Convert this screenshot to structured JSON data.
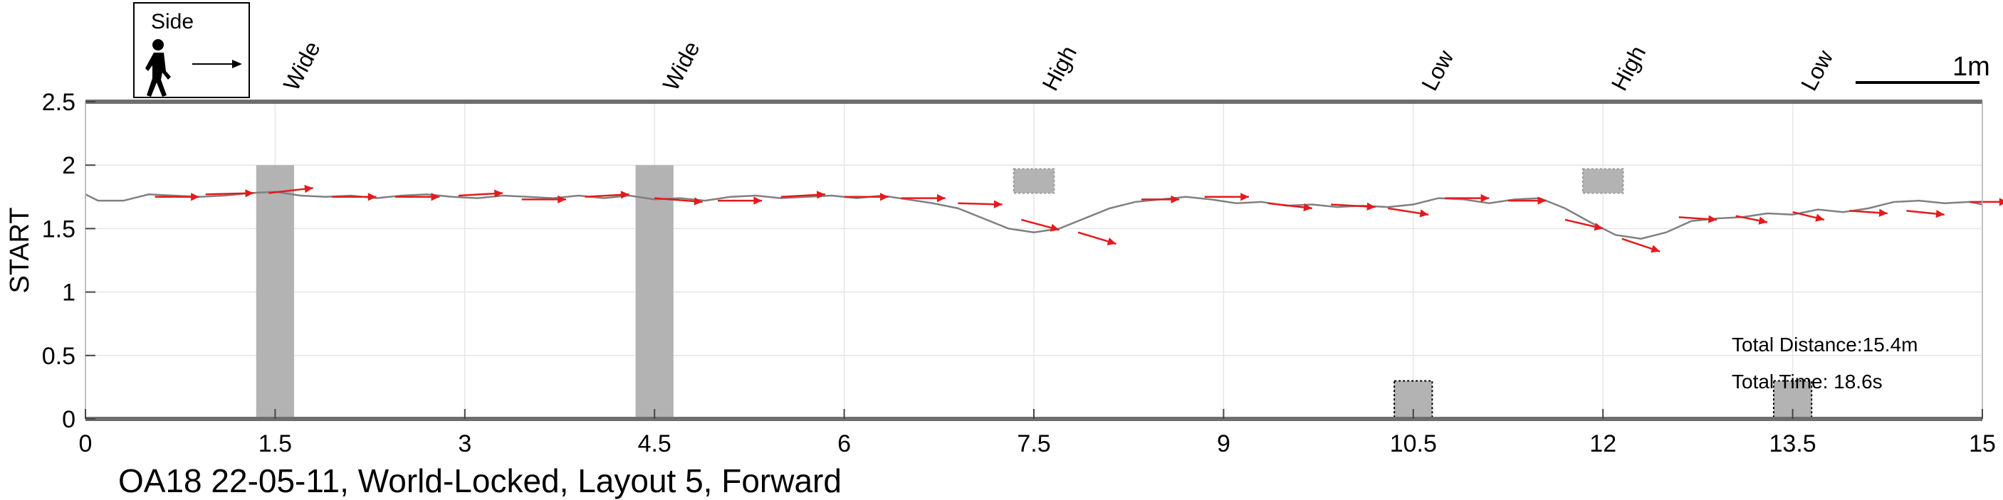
{
  "chart_data": {
    "type": "line",
    "caption": "OA18 22-05-11, World-Locked, Layout 5, Forward",
    "ylabel": "START",
    "xlim": [
      0,
      15
    ],
    "ylim": [
      0,
      2.5
    ],
    "x_ticks": [
      0,
      1.5,
      3,
      4.5,
      6,
      7.5,
      9,
      10.5,
      12,
      13.5,
      15
    ],
    "x_tick_labels": [
      "0",
      "1.5",
      "3",
      "4.5",
      "6",
      "7.5",
      "9",
      "10.5",
      "12",
      "13.5",
      "15"
    ],
    "y_ticks": [
      0,
      0.5,
      1,
      1.5,
      2,
      2.5
    ],
    "y_tick_labels": [
      "0",
      "0.5",
      "1",
      "1.5",
      "2",
      "2.5"
    ],
    "grid": true,
    "path": {
      "color": "#808080",
      "x": [
        0,
        0.1,
        0.3,
        0.5,
        0.7,
        0.9,
        1.1,
        1.3,
        1.5,
        1.7,
        1.9,
        2.1,
        2.3,
        2.5,
        2.7,
        2.9,
        3.1,
        3.3,
        3.5,
        3.7,
        3.9,
        4.1,
        4.3,
        4.5,
        4.7,
        4.9,
        5.1,
        5.3,
        5.5,
        5.7,
        5.9,
        6.1,
        6.3,
        6.5,
        6.7,
        6.9,
        7.1,
        7.3,
        7.5,
        7.7,
        7.9,
        8.1,
        8.3,
        8.5,
        8.7,
        8.9,
        9.1,
        9.3,
        9.5,
        9.7,
        9.9,
        10.1,
        10.3,
        10.5,
        10.7,
        10.9,
        11.1,
        11.3,
        11.5,
        11.7,
        11.9,
        12.1,
        12.3,
        12.5,
        12.7,
        12.9,
        13.1,
        13.3,
        13.5,
        13.7,
        13.9,
        14.1,
        14.3,
        14.5,
        14.7,
        14.9,
        15.0
      ],
      "y": [
        1.77,
        1.72,
        1.72,
        1.77,
        1.76,
        1.75,
        1.76,
        1.78,
        1.79,
        1.76,
        1.75,
        1.76,
        1.74,
        1.76,
        1.77,
        1.75,
        1.74,
        1.76,
        1.75,
        1.74,
        1.76,
        1.74,
        1.76,
        1.73,
        1.74,
        1.72,
        1.75,
        1.76,
        1.74,
        1.75,
        1.76,
        1.74,
        1.76,
        1.73,
        1.7,
        1.66,
        1.58,
        1.5,
        1.47,
        1.5,
        1.58,
        1.66,
        1.71,
        1.73,
        1.75,
        1.73,
        1.7,
        1.71,
        1.68,
        1.69,
        1.67,
        1.68,
        1.67,
        1.69,
        1.74,
        1.73,
        1.7,
        1.73,
        1.74,
        1.66,
        1.55,
        1.45,
        1.42,
        1.47,
        1.56,
        1.58,
        1.59,
        1.62,
        1.61,
        1.65,
        1.63,
        1.66,
        1.71,
        1.72,
        1.7,
        1.71,
        1.69
      ]
    },
    "heading_arrows": {
      "color": "#e41a1c",
      "x": [
        0.55,
        0.95,
        1.45,
        1.95,
        2.45,
        2.95,
        3.45,
        3.95,
        4.5,
        5.0,
        5.5,
        6.0,
        6.45,
        6.9,
        7.4,
        7.85,
        8.35,
        8.85,
        9.35,
        9.85,
        10.3,
        10.75,
        11.25,
        11.7,
        12.15,
        12.6,
        13.05,
        13.5,
        13.95,
        14.4,
        14.9
      ],
      "y": [
        1.75,
        1.77,
        1.78,
        1.75,
        1.75,
        1.76,
        1.73,
        1.75,
        1.74,
        1.72,
        1.75,
        1.75,
        1.74,
        1.7,
        1.57,
        1.47,
        1.73,
        1.75,
        1.7,
        1.69,
        1.66,
        1.74,
        1.72,
        1.57,
        1.42,
        1.59,
        1.6,
        1.63,
        1.64,
        1.64,
        1.71
      ],
      "dx": [
        0.35,
        0.38,
        0.35,
        0.35,
        0.35,
        0.35,
        0.35,
        0.35,
        0.38,
        0.35,
        0.35,
        0.35,
        0.35,
        0.35,
        0.3,
        0.3,
        0.3,
        0.35,
        0.35,
        0.35,
        0.32,
        0.35,
        0.3,
        0.3,
        0.3,
        0.3,
        0.25,
        0.25,
        0.3,
        0.3,
        0.3
      ],
      "dy": [
        0.0,
        0.01,
        0.04,
        0.0,
        0.0,
        0.02,
        0.0,
        0.02,
        -0.03,
        0.0,
        0.02,
        0.0,
        0.0,
        -0.01,
        -0.08,
        -0.09,
        0.0,
        0.0,
        -0.04,
        -0.02,
        -0.05,
        0.0,
        0.0,
        -0.07,
        -0.1,
        -0.02,
        -0.05,
        -0.06,
        -0.02,
        -0.03,
        0.0
      ]
    },
    "obstacles": [
      {
        "label": "Wide",
        "x_center": 1.5,
        "kind": "wide"
      },
      {
        "label": "Wide",
        "x_center": 4.5,
        "kind": "wide"
      },
      {
        "label": "High",
        "x_center": 7.5,
        "kind": "high"
      },
      {
        "label": "Low",
        "x_center": 10.5,
        "kind": "low"
      },
      {
        "label": "High",
        "x_center": 12.0,
        "kind": "high"
      },
      {
        "label": "Low",
        "x_center": 13.5,
        "kind": "low"
      }
    ],
    "obstacle_color": "#b3b3b3",
    "stats": {
      "distance": "Total Distance:15.4m",
      "time": "Total Time: 18.6s"
    },
    "scale_bar_label": "1m",
    "legend": {
      "label": "Side",
      "icon": "walking-person-icon"
    }
  }
}
